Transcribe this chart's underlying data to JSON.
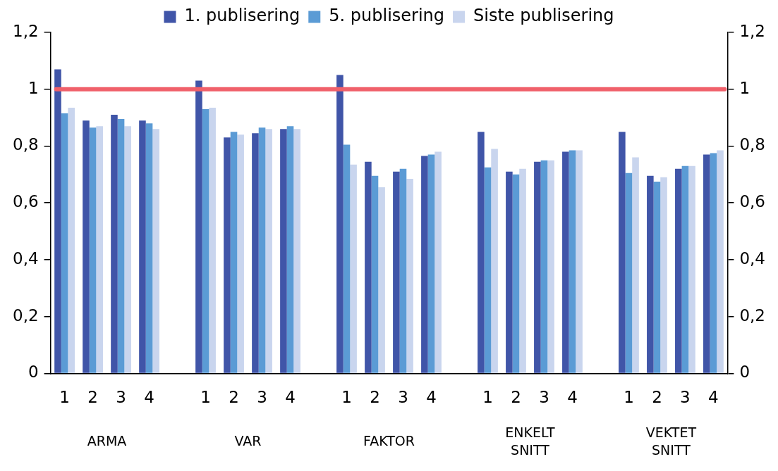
{
  "chart_data": {
    "type": "bar",
    "categories": [
      "1",
      "2",
      "3",
      "4",
      null,
      "1",
      "2",
      "3",
      "4",
      null,
      "1",
      "2",
      "3",
      "4",
      null,
      "1",
      "2",
      "3",
      "4",
      null,
      "1",
      "2",
      "3",
      "4"
    ],
    "series": [
      {
        "name": "1. publisering",
        "color": "#4055a8",
        "values": [
          1.07,
          0.89,
          0.91,
          0.89,
          null,
          1.03,
          0.83,
          0.845,
          0.86,
          null,
          1.05,
          0.745,
          0.71,
          0.765,
          null,
          0.85,
          0.71,
          0.745,
          0.78,
          null,
          0.85,
          0.695,
          0.72,
          0.77
        ]
      },
      {
        "name": "5. publisering",
        "color": "#5b9bd5",
        "values": [
          0.915,
          0.865,
          0.895,
          0.88,
          null,
          0.93,
          0.85,
          0.865,
          0.87,
          null,
          0.805,
          0.695,
          0.72,
          0.77,
          null,
          0.725,
          0.7,
          0.75,
          0.785,
          null,
          0.705,
          0.675,
          0.73,
          0.775
        ]
      },
      {
        "name": "Siste publisering",
        "color": "#c9d5ee",
        "values": [
          0.935,
          0.87,
          0.87,
          0.86,
          null,
          0.935,
          0.84,
          0.86,
          0.86,
          null,
          0.735,
          0.655,
          0.685,
          0.78,
          null,
          0.79,
          0.72,
          0.75,
          0.785,
          null,
          0.76,
          0.69,
          0.73,
          0.785
        ]
      }
    ],
    "ylim": [
      0,
      1.2
    ],
    "yticks": [
      0,
      {
        "value": 0.2,
        "label": "0,2"
      },
      {
        "value": 0.4,
        "label": "0,4"
      },
      {
        "value": 0.6,
        "label": "0,6"
      },
      {
        "value": 0.8,
        "label": "0,8"
      },
      1,
      {
        "value": 1.2,
        "label": "1,2"
      }
    ],
    "y2lim": [
      0,
      1.2
    ],
    "y2ticks": [
      0,
      {
        "value": 0.2,
        "label": "0,2"
      },
      {
        "value": 0.4,
        "label": "0,4"
      },
      {
        "value": 0.6,
        "label": "0,6"
      },
      {
        "value": 0.8,
        "label": "0,8"
      },
      1,
      {
        "value": 1.2,
        "label": "1,2"
      }
    ],
    "ref_lines": [
      {
        "axis": "y",
        "value": 1,
        "color": "#f0606a"
      }
    ],
    "annotations": [
      "ARMA",
      "VAR",
      "FAKTOR",
      "ENKELT SNITT",
      "VEKTET SNITT"
    ],
    "legend": "top",
    "grid": false
  }
}
